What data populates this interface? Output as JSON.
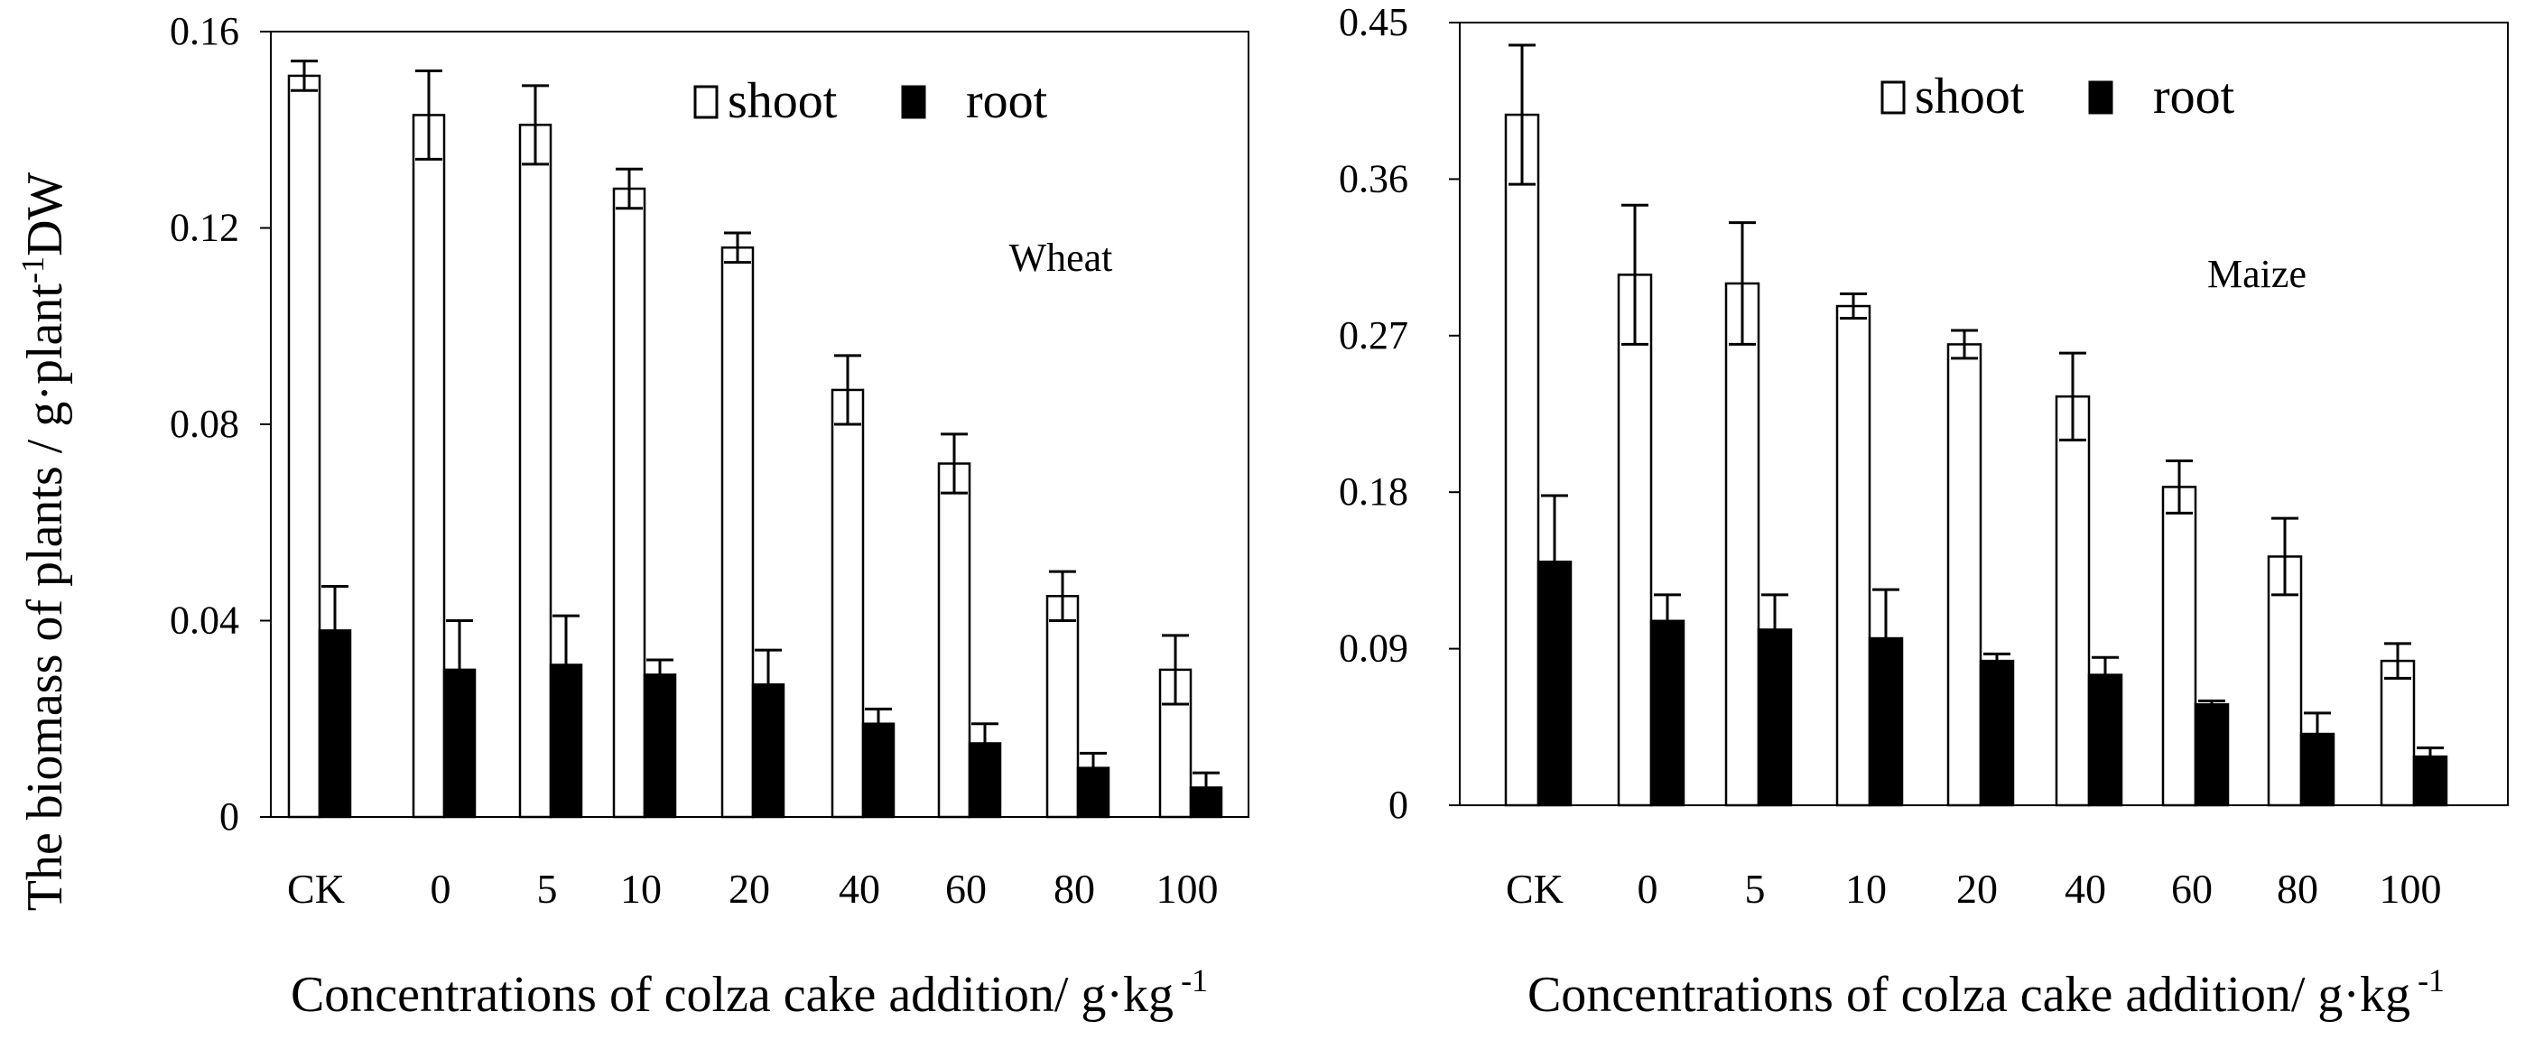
{
  "y_axis_label": "The biomass of plants / g·plant",
  "y_axis_label_sup": "-1",
  "y_axis_label_unit": "DW",
  "chart_data": [
    {
      "type": "bar",
      "annotation": "Wheat",
      "xlabel": "Concentrations of colza cake addition/ g·kg",
      "xlabel_sup": "-1",
      "ylim": [
        0,
        0.16
      ],
      "yticks": [
        "0",
        "0.04",
        "0.08",
        "0.12",
        "0.16"
      ],
      "ytick_values": [
        0,
        0.04,
        0.08,
        0.12,
        0.16
      ],
      "categories": [
        "CK",
        "0",
        "5",
        "10",
        "20",
        "40",
        "60",
        "80",
        "100"
      ],
      "legend": [
        "shoot",
        "root"
      ],
      "legend_position": "top-right",
      "grid": false,
      "series": [
        {
          "name": "shoot",
          "fill": "#ffffff",
          "values": [
            0.151,
            0.143,
            0.141,
            0.128,
            0.116,
            0.087,
            0.072,
            0.045,
            0.03
          ],
          "errors": [
            0.003,
            0.009,
            0.008,
            0.004,
            0.003,
            0.007,
            0.006,
            0.005,
            0.007
          ]
        },
        {
          "name": "root",
          "fill": "#000000",
          "values": [
            0.038,
            0.03,
            0.031,
            0.029,
            0.027,
            0.019,
            0.015,
            0.01,
            0.006
          ],
          "errors": [
            0.009,
            0.01,
            0.01,
            0.003,
            0.007,
            0.003,
            0.004,
            0.003,
            0.003
          ]
        }
      ]
    },
    {
      "type": "bar",
      "annotation": "Maize",
      "xlabel": "Concentrations of colza cake addition/ g·kg",
      "xlabel_sup": "-1",
      "ylim": [
        0,
        0.45
      ],
      "yticks": [
        "0",
        "0.09",
        "0.18",
        "0.27",
        "0.36",
        "0.45"
      ],
      "ytick_values": [
        0,
        0.09,
        0.18,
        0.27,
        0.36,
        0.45
      ],
      "categories": [
        "CK",
        "0",
        "5",
        "10",
        "20",
        "40",
        "60",
        "80",
        "100"
      ],
      "legend": [
        "shoot",
        "root"
      ],
      "legend_position": "top-right",
      "grid": false,
      "series": [
        {
          "name": "shoot",
          "fill": "#ffffff",
          "values": [
            0.397,
            0.305,
            0.3,
            0.287,
            0.265,
            0.235,
            0.183,
            0.143,
            0.083
          ],
          "errors": [
            0.04,
            0.04,
            0.035,
            0.007,
            0.008,
            0.025,
            0.015,
            0.022,
            0.01
          ]
        },
        {
          "name": "root",
          "fill": "#000000",
          "values": [
            0.14,
            0.106,
            0.101,
            0.096,
            0.083,
            0.075,
            0.058,
            0.041,
            0.028
          ],
          "errors": [
            0.038,
            0.015,
            0.02,
            0.028,
            0.004,
            0.01,
            0.002,
            0.012,
            0.005
          ]
        }
      ]
    }
  ]
}
